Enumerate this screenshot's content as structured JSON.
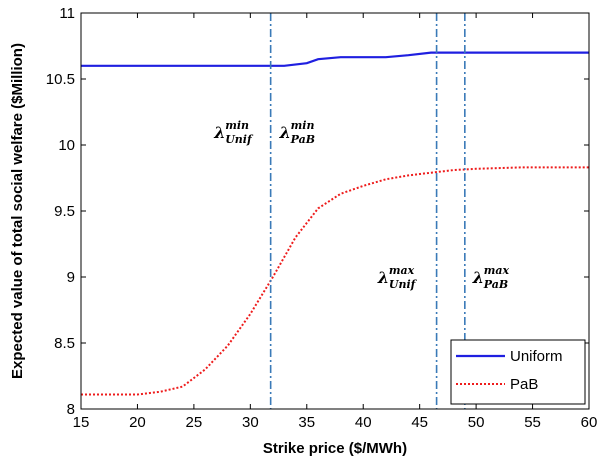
{
  "chart_data": {
    "type": "line",
    "title": "",
    "xlabel": "Strike price ($/MWh)",
    "ylabel": "Expected value of total social welfare ($Million)",
    "xlim": [
      15,
      60
    ],
    "ylim": [
      8,
      11
    ],
    "xticks": [
      15,
      20,
      25,
      30,
      35,
      40,
      45,
      50,
      55,
      60
    ],
    "yticks": [
      8,
      8.5,
      9,
      9.5,
      10,
      10.5,
      11
    ],
    "grid": false,
    "legend_position": "bottom-right",
    "series": [
      {
        "name": "Uniform",
        "color": "#1f1fe0",
        "style": "solid",
        "x": [
          15,
          20,
          25,
          30,
          33,
          35,
          36,
          38,
          40,
          42,
          44,
          46,
          48,
          50,
          55,
          60
        ],
        "y": [
          10.6,
          10.6,
          10.6,
          10.6,
          10.6,
          10.62,
          10.65,
          10.665,
          10.665,
          10.665,
          10.68,
          10.7,
          10.7,
          10.7,
          10.7,
          10.7
        ]
      },
      {
        "name": "PaB",
        "color": "#ee1c1c",
        "style": "dotted",
        "x": [
          15,
          20,
          22,
          24,
          26,
          28,
          30,
          32,
          34,
          36,
          38,
          40,
          42,
          44,
          46,
          48,
          50,
          52,
          54,
          56,
          58,
          60
        ],
        "y": [
          8.11,
          8.11,
          8.13,
          8.17,
          8.3,
          8.48,
          8.72,
          9.0,
          9.3,
          9.52,
          9.63,
          9.69,
          9.74,
          9.77,
          9.79,
          9.81,
          9.82,
          9.825,
          9.83,
          9.83,
          9.83,
          9.83
        ]
      }
    ],
    "vlines": [
      {
        "x": 31.8,
        "color": "#3a7ab8",
        "style": "dashdot"
      },
      {
        "x": 46.5,
        "color": "#3a7ab8",
        "style": "dashdot"
      },
      {
        "x": 49.0,
        "color": "#3a7ab8",
        "style": "dashdot"
      }
    ],
    "annotations": [
      {
        "base": "λ",
        "sup": "min",
        "sub": "Unif",
        "x": 26.8,
        "y": 10.1
      },
      {
        "base": "λ",
        "sup": "min",
        "sub": "PaB",
        "x": 32.6,
        "y": 10.1
      },
      {
        "base": "λ",
        "sup": "max",
        "sub": "Unif",
        "x": 41.3,
        "y": 9.0
      },
      {
        "base": "λ",
        "sup": "max",
        "sub": "PaB",
        "x": 49.7,
        "y": 9.0
      }
    ]
  }
}
